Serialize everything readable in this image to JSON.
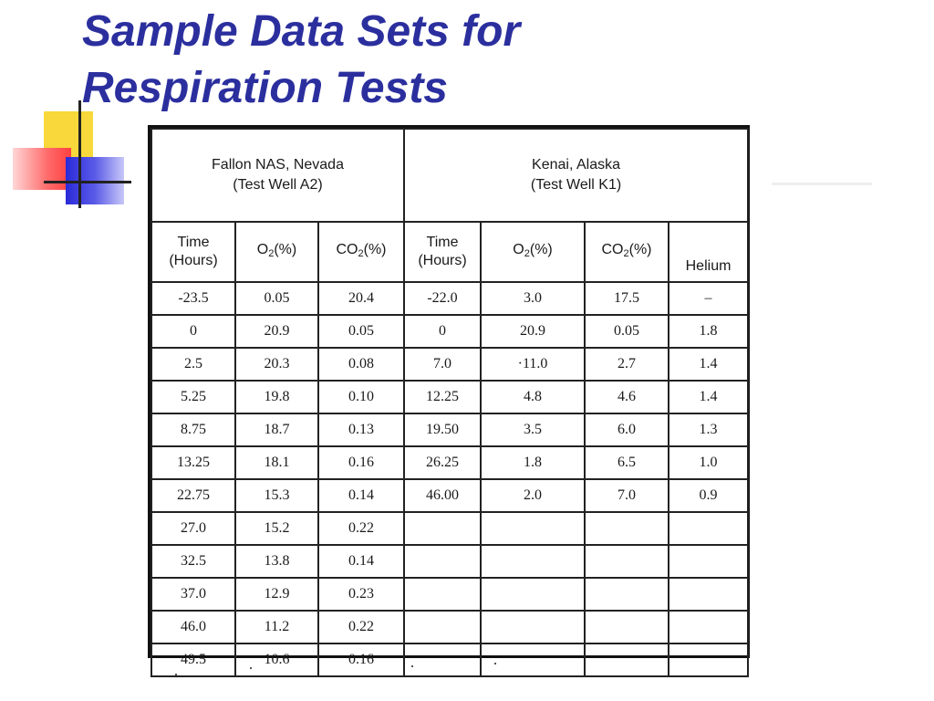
{
  "slide": {
    "title_line1": "Sample Data Sets for",
    "title_line2": "Respiration Tests"
  },
  "table": {
    "sites": [
      {
        "name": "Fallon NAS, Nevada",
        "well": "(Test Well A2)"
      },
      {
        "name": "Kenai, Alaska",
        "well": "(Test Well K1)"
      }
    ],
    "columns": [
      {
        "l1": "Time",
        "l2": "(Hours)"
      },
      {
        "o": "O",
        "sub": "2",
        "rest": "(%)"
      },
      {
        "o": "CO",
        "sub": "2",
        "rest": "(%)"
      },
      {
        "l1": "Time",
        "l2": "(Hours)"
      },
      {
        "o": "O",
        "sub": "2",
        "rest": "(%)"
      },
      {
        "o": "CO",
        "sub": "2",
        "rest": "(%)"
      },
      {
        "l1": "Helium"
      }
    ],
    "rows": [
      [
        "-23.5",
        "0.05",
        "20.4",
        "-22.0",
        "3.0",
        "17.5",
        "–"
      ],
      [
        "0",
        "20.9",
        "0.05",
        "0",
        "20.9",
        "0.05",
        "1.8"
      ],
      [
        "2.5",
        "20.3",
        "0.08",
        "7.0",
        "·11.0",
        "2.7",
        "1.4"
      ],
      [
        "5.25",
        "19.8",
        "0.10",
        "12.25",
        "4.8",
        "4.6",
        "1.4"
      ],
      [
        "8.75",
        "18.7",
        "0.13",
        "19.50",
        "3.5",
        "6.0",
        "1.3"
      ],
      [
        "13.25",
        "18.1",
        "0.16",
        "26.25",
        "1.8",
        "6.5",
        "1.0"
      ],
      [
        "22.75",
        "15.3",
        "0.14",
        "46.00",
        "2.0",
        "7.0",
        "0.9"
      ],
      [
        "27.0",
        "15.2",
        "0.22",
        "",
        "",
        "",
        ""
      ],
      [
        "32.5",
        "13.8",
        "0.14",
        "",
        "",
        "",
        ""
      ],
      [
        "37.0",
        "12.9",
        "0.23",
        "",
        "",
        "",
        ""
      ],
      [
        "46.0",
        "11.2",
        "0.22",
        "",
        "",
        "",
        ""
      ],
      [
        "49.5",
        "10.6",
        "0.16",
        "",
        "",
        "",
        ""
      ]
    ]
  }
}
